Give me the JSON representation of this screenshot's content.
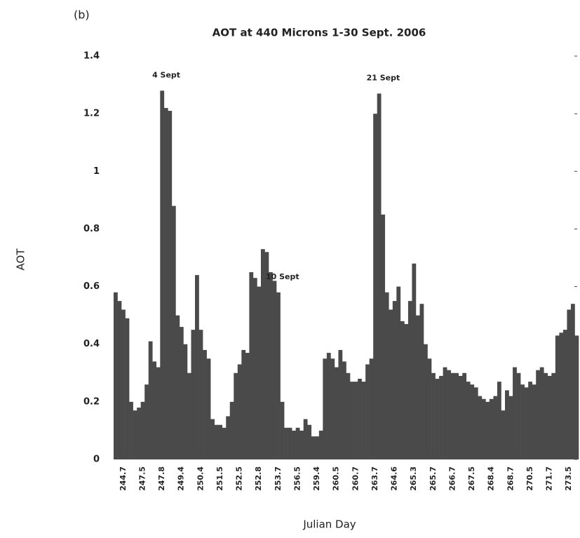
{
  "chart_data": {
    "type": "bar",
    "panel_label": "(b)",
    "title": "AOT at 440 Microns 1-30 Sept. 2006",
    "x_label": "Julian Day",
    "y_label": "AOT",
    "color": "#4a4a4a",
    "ylim": [
      0,
      1.4
    ],
    "yticks": [
      0,
      0.2,
      0.4,
      0.6,
      0.8,
      1,
      1.2,
      1.4
    ],
    "annotations": [
      {
        "text": "4 Sept",
        "index": 12
      },
      {
        "text": "10 Sept",
        "index": 42
      },
      {
        "text": "21 Sept",
        "index": 68
      }
    ],
    "categories": [
      null,
      null,
      "244.7",
      null,
      null,
      null,
      null,
      "247.5",
      null,
      null,
      null,
      null,
      "247.8",
      null,
      null,
      null,
      null,
      "249.4",
      null,
      null,
      null,
      null,
      "250.4",
      null,
      null,
      null,
      null,
      "251.5",
      null,
      null,
      null,
      null,
      "252.5",
      null,
      null,
      null,
      null,
      "252.8",
      null,
      null,
      null,
      null,
      "253.7",
      null,
      null,
      null,
      null,
      "256.5",
      null,
      null,
      null,
      null,
      "259.4",
      null,
      null,
      null,
      null,
      "260.5",
      null,
      null,
      null,
      null,
      "260.7",
      null,
      null,
      null,
      null,
      "263.7",
      null,
      null,
      null,
      null,
      "264.6",
      null,
      null,
      null,
      null,
      "265.3",
      null,
      null,
      null,
      null,
      "265.7",
      null,
      null,
      null,
      null,
      "266.7",
      null,
      null,
      null,
      null,
      "267.5",
      null,
      null,
      null,
      null,
      "268.4",
      null,
      null,
      null,
      null,
      "268.7",
      null,
      null,
      null,
      null,
      "270.5",
      null,
      null,
      null,
      null,
      "271.7",
      null,
      null,
      null,
      null,
      "273.5",
      null,
      null
    ],
    "values": [
      0.58,
      0.55,
      0.52,
      0.49,
      0.2,
      0.17,
      0.18,
      0.2,
      0.26,
      0.41,
      0.34,
      0.32,
      1.28,
      1.22,
      1.21,
      0.88,
      0.5,
      0.46,
      0.4,
      0.3,
      0.45,
      0.64,
      0.45,
      0.38,
      0.35,
      0.14,
      0.12,
      0.12,
      0.11,
      0.15,
      0.2,
      0.3,
      0.33,
      0.38,
      0.37,
      0.65,
      0.63,
      0.6,
      0.73,
      0.72,
      0.65,
      0.62,
      0.58,
      0.2,
      0.11,
      0.11,
      0.1,
      0.11,
      0.1,
      0.14,
      0.12,
      0.08,
      0.08,
      0.1,
      0.35,
      0.37,
      0.35,
      0.32,
      0.38,
      0.34,
      0.3,
      0.27,
      0.27,
      0.28,
      0.27,
      0.33,
      0.35,
      1.2,
      1.27,
      0.85,
      0.58,
      0.52,
      0.55,
      0.6,
      0.48,
      0.47,
      0.55,
      0.68,
      0.5,
      0.54,
      0.4,
      0.35,
      0.3,
      0.28,
      0.29,
      0.32,
      0.31,
      0.3,
      0.3,
      0.29,
      0.3,
      0.27,
      0.26,
      0.25,
      0.22,
      0.21,
      0.2,
      0.21,
      0.22,
      0.27,
      0.17,
      0.24,
      0.22,
      0.32,
      0.3,
      0.26,
      0.25,
      0.27,
      0.26,
      0.31,
      0.32,
      0.3,
      0.29,
      0.3,
      0.43,
      0.44,
      0.45,
      0.52,
      0.54,
      0.43
    ]
  }
}
